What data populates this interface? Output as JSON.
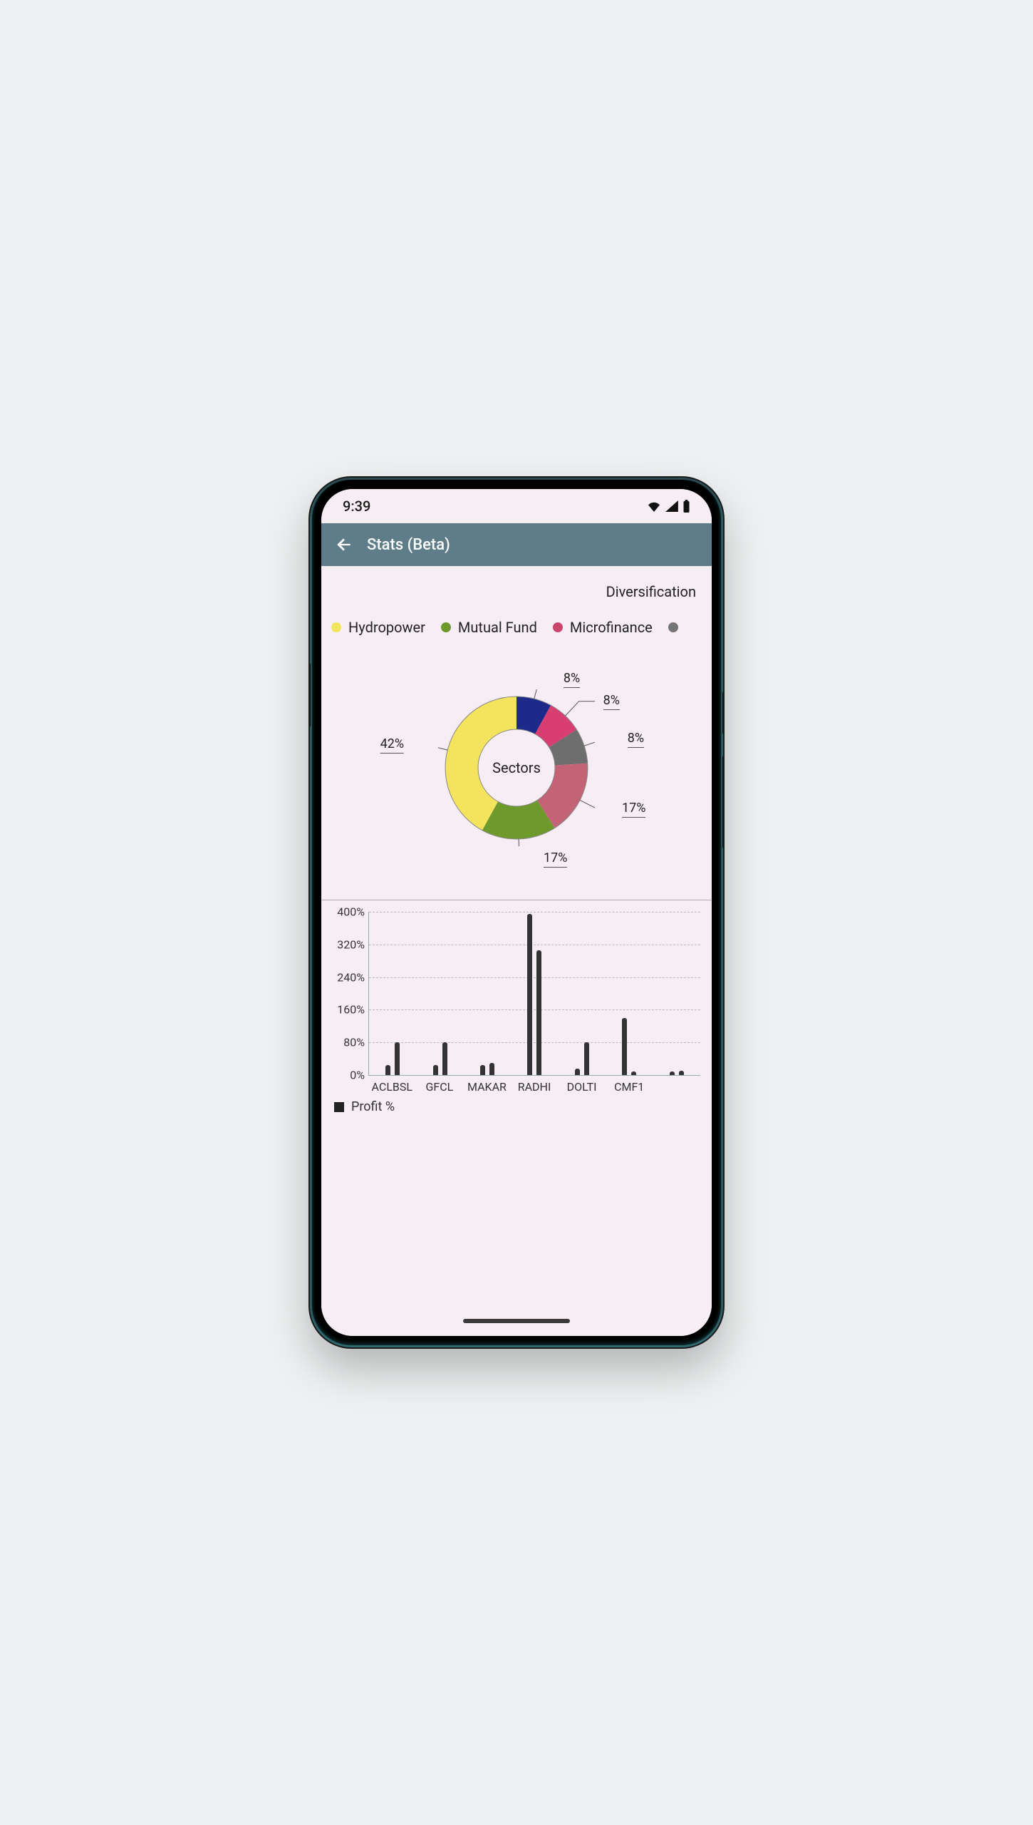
{
  "status": {
    "time": "9:39"
  },
  "appbar": {
    "title": "Stats (Beta)"
  },
  "section": {
    "title": "Diversification"
  },
  "legend": {
    "items": [
      {
        "label": "Hydropower",
        "color": "#f4e35c"
      },
      {
        "label": "Mutual Fund",
        "color": "#6d9a2b"
      },
      {
        "label": "Microfinance",
        "color": "#c8456b"
      },
      {
        "label": "",
        "color": "#757575"
      }
    ]
  },
  "donut": {
    "type": "donut",
    "center_label": "Sectors",
    "outer_radius": 100,
    "inner_radius": 54,
    "ring_stroke": "#888",
    "background": "#f6eef4",
    "label_fontsize": 18,
    "slices": [
      {
        "value": 8,
        "color": "#1e2a8a",
        "label": "8%"
      },
      {
        "value": 8,
        "color": "#d83e72",
        "label": "8%"
      },
      {
        "value": 8,
        "color": "#6e6e6e",
        "label": "8%"
      },
      {
        "value": 17,
        "color": "#c46276",
        "label": "17%"
      },
      {
        "value": 17,
        "color": "#6d9a2b",
        "label": "17%"
      },
      {
        "value": 42,
        "color": "#f4e35c",
        "label": "42%"
      }
    ]
  },
  "bar": {
    "type": "bar-grouped",
    "ylabel_format_pct": true,
    "ylim": [
      0,
      400
    ],
    "ytick_step": 80,
    "bar_color": "#333333",
    "grid_dash_color": "#bbbbbb",
    "legend_label": "Profit %",
    "categories": [
      "ACLBSL",
      "GFCL",
      "MAKAR",
      "RADHI",
      "DOLTI",
      "CMF1"
    ],
    "values_a": [
      25,
      25,
      25,
      395,
      15,
      140
    ],
    "values_b": [
      80,
      80,
      30,
      305,
      80,
      8
    ],
    "extra_trailing": [
      8,
      10
    ]
  }
}
